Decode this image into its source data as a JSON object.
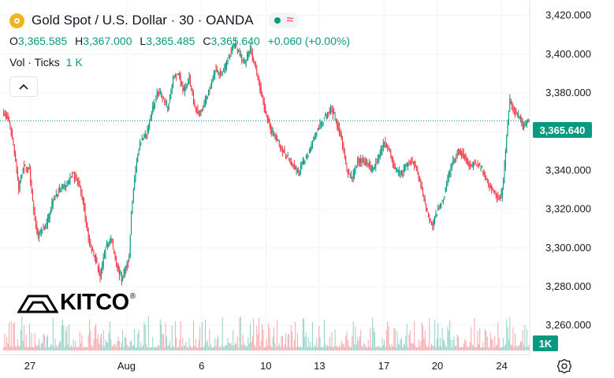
{
  "legend": {
    "title": "Gold Spot / U.S. Dollar · 30 · OANDA",
    "approx_symbol": "≈",
    "ohlc": {
      "o_label": "O",
      "o_value": "3,365.585",
      "h_label": "H",
      "h_value": "3,367.000",
      "l_label": "L",
      "l_value": "3,365.485",
      "c_label": "C",
      "c_value": "3,365.640",
      "change": "+0.060 (+0.00%)"
    },
    "volume": {
      "label": "Vol · Ticks",
      "value": "1 K"
    }
  },
  "price_badge": "3,365.640",
  "volume_badge": "1K",
  "logo": {
    "text": "KITCO",
    "mark": "®"
  },
  "colors": {
    "up": "#089981",
    "down": "#f23645",
    "accent": "#f0b41f",
    "grid": "#f0f3fa"
  },
  "icons": [
    "gold-symbol-icon",
    "market-status-dot-icon",
    "chevron-up-icon",
    "kitco-logo-icon",
    "settings-icon"
  ],
  "chart_data": {
    "type": "candlestick",
    "interval": "30",
    "y_range": [
      3245,
      3428
    ],
    "y_ticks": [
      {
        "label": "3,420.000",
        "value": 3420
      },
      {
        "label": "3,400.000",
        "value": 3400
      },
      {
        "label": "3,380.000",
        "value": 3380
      },
      {
        "label": "3,360.000",
        "value": 3360
      },
      {
        "label": "3,340.000",
        "value": 3340
      },
      {
        "label": "3,320.000",
        "value": 3320
      },
      {
        "label": "3,300.000",
        "value": 3300
      },
      {
        "label": "3,280.000",
        "value": 3280
      },
      {
        "label": "3,260.000",
        "value": 3260
      }
    ],
    "x_ticks": [
      {
        "label": "27",
        "bar": 25
      },
      {
        "label": "Aug",
        "bar": 115
      },
      {
        "label": "6",
        "bar": 185
      },
      {
        "label": "10",
        "bar": 245
      },
      {
        "label": "13",
        "bar": 295
      },
      {
        "label": "17",
        "bar": 355
      },
      {
        "label": "20",
        "bar": 405
      },
      {
        "label": "24",
        "bar": 465
      }
    ],
    "last_price": 3365.64,
    "price_path": [
      [
        0,
        3370
      ],
      [
        5,
        3365
      ],
      [
        10,
        3350
      ],
      [
        14,
        3330
      ],
      [
        18,
        3342
      ],
      [
        24,
        3340
      ],
      [
        28,
        3318
      ],
      [
        32,
        3306
      ],
      [
        36,
        3310
      ],
      [
        40,
        3312
      ],
      [
        46,
        3325
      ],
      [
        52,
        3330
      ],
      [
        58,
        3332
      ],
      [
        64,
        3338
      ],
      [
        70,
        3334
      ],
      [
        75,
        3320
      ],
      [
        80,
        3302
      ],
      [
        85,
        3296
      ],
      [
        90,
        3285
      ],
      [
        95,
        3300
      ],
      [
        100,
        3305
      ],
      [
        105,
        3292
      ],
      [
        110,
        3283
      ],
      [
        114,
        3290
      ],
      [
        117,
        3295
      ],
      [
        119,
        3318
      ],
      [
        121,
        3330
      ],
      [
        124,
        3345
      ],
      [
        128,
        3355
      ],
      [
        133,
        3358
      ],
      [
        138,
        3370
      ],
      [
        143,
        3380
      ],
      [
        148,
        3378
      ],
      [
        153,
        3372
      ],
      [
        158,
        3388
      ],
      [
        163,
        3390
      ],
      [
        168,
        3380
      ],
      [
        173,
        3388
      ],
      [
        178,
        3372
      ],
      [
        183,
        3370
      ],
      [
        188,
        3376
      ],
      [
        192,
        3382
      ],
      [
        197,
        3392
      ],
      [
        202,
        3390
      ],
      [
        207,
        3394
      ],
      [
        212,
        3402
      ],
      [
        216,
        3405
      ],
      [
        220,
        3400
      ],
      [
        225,
        3395
      ],
      [
        230,
        3403
      ],
      [
        235,
        3392
      ],
      [
        240,
        3380
      ],
      [
        245,
        3368
      ],
      [
        250,
        3360
      ],
      [
        255,
        3356
      ],
      [
        260,
        3350
      ],
      [
        265,
        3346
      ],
      [
        270,
        3342
      ],
      [
        275,
        3338
      ],
      [
        280,
        3345
      ],
      [
        285,
        3350
      ],
      [
        290,
        3358
      ],
      [
        295,
        3363
      ],
      [
        300,
        3368
      ],
      [
        305,
        3372
      ],
      [
        310,
        3366
      ],
      [
        315,
        3356
      ],
      [
        320,
        3340
      ],
      [
        325,
        3336
      ],
      [
        330,
        3345
      ],
      [
        335,
        3345
      ],
      [
        340,
        3343
      ],
      [
        345,
        3340
      ],
      [
        350,
        3348
      ],
      [
        355,
        3355
      ],
      [
        360,
        3350
      ],
      [
        365,
        3340
      ],
      [
        370,
        3338
      ],
      [
        375,
        3342
      ],
      [
        380,
        3346
      ],
      [
        385,
        3340
      ],
      [
        390,
        3330
      ],
      [
        395,
        3318
      ],
      [
        400,
        3312
      ],
      [
        405,
        3320
      ],
      [
        410,
        3325
      ],
      [
        415,
        3338
      ],
      [
        420,
        3346
      ],
      [
        425,
        3350
      ],
      [
        430,
        3347
      ],
      [
        435,
        3342
      ],
      [
        440,
        3344
      ],
      [
        445,
        3341
      ],
      [
        450,
        3336
      ],
      [
        455,
        3330
      ],
      [
        458,
        3328
      ],
      [
        462,
        3325
      ],
      [
        464,
        3327
      ],
      [
        466,
        3335
      ],
      [
        468,
        3350
      ],
      [
        470,
        3365
      ],
      [
        472,
        3376
      ],
      [
        475,
        3371
      ],
      [
        480,
        3368
      ],
      [
        485,
        3362
      ],
      [
        489,
        3366
      ],
      [
        490,
        3365.64
      ]
    ]
  }
}
